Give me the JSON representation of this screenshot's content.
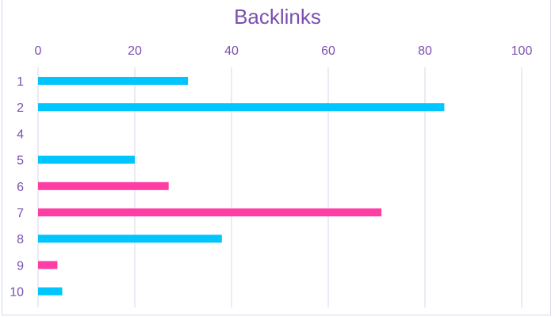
{
  "chart_data": {
    "type": "bar",
    "orientation": "horizontal",
    "title": "Backlinks",
    "xlabel": "",
    "ylabel": "",
    "xlim": [
      0,
      100
    ],
    "xticks": [
      0,
      20,
      40,
      60,
      80,
      100
    ],
    "grid": true,
    "legend": "none",
    "categories": [
      "1",
      "2",
      "4",
      "5",
      "6",
      "7",
      "8",
      "9",
      "10"
    ],
    "values": [
      31,
      84,
      0,
      20,
      27,
      71,
      38,
      4,
      5
    ],
    "bar_colors": [
      "#00c5ff",
      "#00c5ff",
      "#00c5ff",
      "#00c5ff",
      "#ff3ea5",
      "#ff3ea5",
      "#00c5ff",
      "#ff3ea5",
      "#00c5ff"
    ],
    "colors": {
      "title": "#7a4fb0",
      "grid": "#d9d4ea"
    }
  }
}
